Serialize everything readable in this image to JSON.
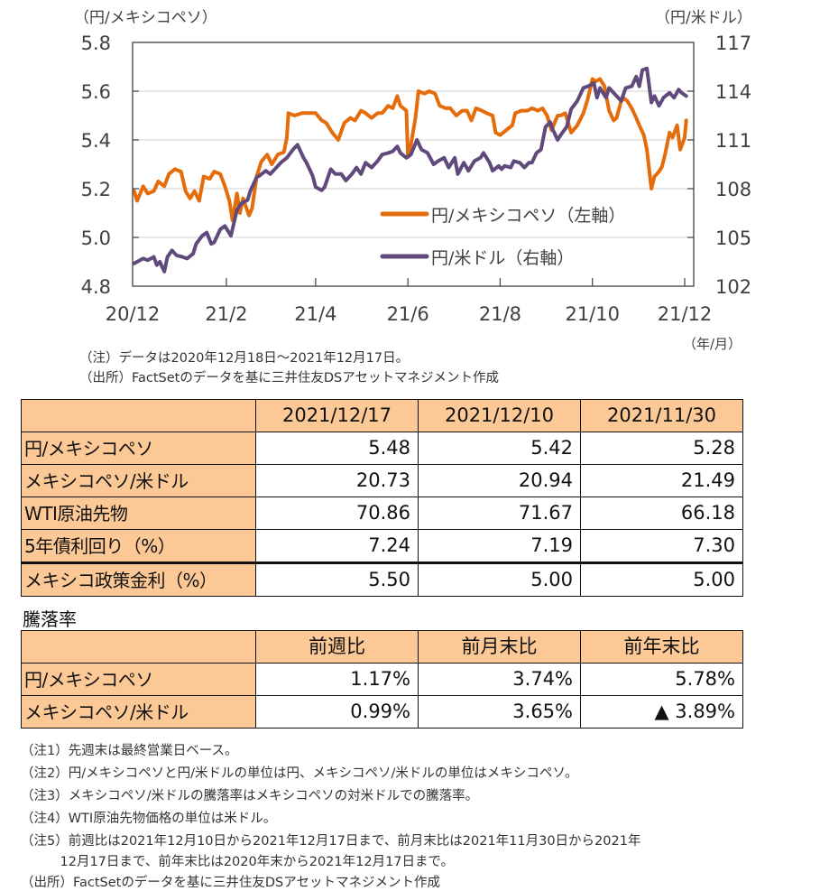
{
  "chart_data": {
    "type": "line",
    "title": "",
    "ylabel_left": "（円/メキシコペソ）",
    "ylabel_right": "（円/米ドル）",
    "xlabel": "（年/月）",
    "x_unit": "days since 2020-12-01",
    "xlim": [
      0,
      371
    ],
    "x_ticks": [
      {
        "day": 0,
        "label": "20/12"
      },
      {
        "day": 62,
        "label": "21/2"
      },
      {
        "day": 121,
        "label": "21/4"
      },
      {
        "day": 182,
        "label": "21/6"
      },
      {
        "day": 243,
        "label": "21/8"
      },
      {
        "day": 304,
        "label": "21/10"
      },
      {
        "day": 365,
        "label": "21/12"
      }
    ],
    "ylim_left": [
      4.8,
      5.8
    ],
    "yticks_left": [
      "4.8",
      "5.0",
      "5.2",
      "5.4",
      "5.6",
      "5.8"
    ],
    "ylim_right": [
      102,
      117
    ],
    "yticks_right": [
      "102",
      "105",
      "108",
      "111",
      "114",
      "117"
    ],
    "grid": true,
    "legend_position": "bottom-right",
    "series": [
      {
        "name": "円/メキシコペソ（左軸）",
        "axis": "left",
        "color": "#e46c0a",
        "points": [
          [
            1,
            5.19
          ],
          [
            3,
            5.15
          ],
          [
            7,
            5.21
          ],
          [
            10,
            5.18
          ],
          [
            14,
            5.19
          ],
          [
            17,
            5.23
          ],
          [
            21,
            5.21
          ],
          [
            24,
            5.26
          ],
          [
            28,
            5.28
          ],
          [
            32,
            5.27
          ],
          [
            35,
            5.19
          ],
          [
            38,
            5.16
          ],
          [
            41,
            5.19
          ],
          [
            44,
            5.15
          ],
          [
            47,
            5.25
          ],
          [
            51,
            5.24
          ],
          [
            54,
            5.27
          ],
          [
            58,
            5.26
          ],
          [
            61,
            5.21
          ],
          [
            64,
            5.15
          ],
          [
            66,
            5.07
          ],
          [
            69,
            5.18
          ],
          [
            71,
            5.1
          ],
          [
            73,
            5.16
          ],
          [
            77,
            5.09
          ],
          [
            79,
            5.12
          ],
          [
            82,
            5.25
          ],
          [
            85,
            5.31
          ],
          [
            89,
            5.34
          ],
          [
            92,
            5.3
          ],
          [
            96,
            5.34
          ],
          [
            100,
            5.35
          ],
          [
            102,
            5.41
          ],
          [
            103,
            5.51
          ],
          [
            107,
            5.5
          ],
          [
            112,
            5.51
          ],
          [
            116,
            5.51
          ],
          [
            121,
            5.51
          ],
          [
            125,
            5.48
          ],
          [
            128,
            5.47
          ],
          [
            132,
            5.43
          ],
          [
            136,
            5.4
          ],
          [
            140,
            5.47
          ],
          [
            144,
            5.49
          ],
          [
            147,
            5.48
          ],
          [
            151,
            5.52
          ],
          [
            154,
            5.51
          ],
          [
            158,
            5.49
          ],
          [
            162,
            5.51
          ],
          [
            165,
            5.51
          ],
          [
            169,
            5.54
          ],
          [
            172,
            5.53
          ],
          [
            175,
            5.58
          ],
          [
            177,
            5.54
          ],
          [
            181,
            5.52
          ],
          [
            182,
            5.33
          ],
          [
            184,
            5.38
          ],
          [
            187,
            5.49
          ],
          [
            189,
            5.6
          ],
          [
            193,
            5.59
          ],
          [
            196,
            5.6
          ],
          [
            200,
            5.59
          ],
          [
            203,
            5.54
          ],
          [
            207,
            5.53
          ],
          [
            210,
            5.53
          ],
          [
            214,
            5.5
          ],
          [
            218,
            5.52
          ],
          [
            221,
            5.52
          ],
          [
            224,
            5.48
          ],
          [
            227,
            5.53
          ],
          [
            231,
            5.52
          ],
          [
            234,
            5.51
          ],
          [
            238,
            5.5
          ],
          [
            240,
            5.43
          ],
          [
            243,
            5.42
          ],
          [
            245,
            5.43
          ],
          [
            247,
            5.44
          ],
          [
            251,
            5.46
          ],
          [
            253,
            5.51
          ],
          [
            257,
            5.52
          ],
          [
            261,
            5.52
          ],
          [
            264,
            5.53
          ],
          [
            268,
            5.52
          ],
          [
            271,
            5.53
          ],
          [
            274,
            5.5
          ],
          [
            277,
            5.44
          ],
          [
            281,
            5.5
          ],
          [
            283,
            5.5
          ],
          [
            286,
            5.51
          ],
          [
            288,
            5.47
          ],
          [
            290,
            5.43
          ],
          [
            294,
            5.46
          ],
          [
            298,
            5.51
          ],
          [
            301,
            5.57
          ],
          [
            304,
            5.65
          ],
          [
            306,
            5.64
          ],
          [
            309,
            5.65
          ],
          [
            312,
            5.62
          ],
          [
            315,
            5.52
          ],
          [
            318,
            5.48
          ],
          [
            320,
            5.49
          ],
          [
            323,
            5.56
          ],
          [
            325,
            5.57
          ],
          [
            327,
            5.56
          ],
          [
            330,
            5.53
          ],
          [
            333,
            5.49
          ],
          [
            335,
            5.46
          ],
          [
            338,
            5.42
          ],
          [
            340,
            5.36
          ],
          [
            343,
            5.2
          ],
          [
            345,
            5.25
          ],
          [
            348,
            5.27
          ],
          [
            350,
            5.29
          ],
          [
            352,
            5.34
          ],
          [
            355,
            5.43
          ],
          [
            357,
            5.41
          ],
          [
            360,
            5.46
          ],
          [
            362,
            5.36
          ],
          [
            365,
            5.41
          ],
          [
            366,
            5.48
          ]
        ]
      },
      {
        "name": "円/米ドル（右軸）",
        "axis": "right",
        "color": "#604a7b",
        "points": [
          [
            1,
            103.4
          ],
          [
            3,
            103.5
          ],
          [
            7,
            103.7
          ],
          [
            10,
            103.6
          ],
          [
            14,
            103.8
          ],
          [
            16,
            103.3
          ],
          [
            18,
            103.5
          ],
          [
            21,
            102.9
          ],
          [
            23,
            103.8
          ],
          [
            26,
            104.2
          ],
          [
            29,
            103.9
          ],
          [
            33,
            103.8
          ],
          [
            36,
            103.7
          ],
          [
            40,
            104.0
          ],
          [
            42,
            104.6
          ],
          [
            46,
            105.1
          ],
          [
            49,
            105.3
          ],
          [
            52,
            104.6
          ],
          [
            54,
            104.7
          ],
          [
            58,
            105.5
          ],
          [
            61,
            105.7
          ],
          [
            65,
            105.1
          ],
          [
            69,
            106.7
          ],
          [
            72,
            107.1
          ],
          [
            76,
            107.3
          ],
          [
            78,
            107.9
          ],
          [
            82,
            108.7
          ],
          [
            84,
            108.8
          ],
          [
            88,
            109.1
          ],
          [
            91,
            108.9
          ],
          [
            95,
            109.3
          ],
          [
            98,
            109.6
          ],
          [
            102,
            109.9
          ],
          [
            106,
            110.4
          ],
          [
            109,
            110.7
          ],
          [
            113,
            109.9
          ],
          [
            115,
            109.6
          ],
          [
            119,
            108.8
          ],
          [
            121,
            108.1
          ],
          [
            125,
            107.9
          ],
          [
            127,
            108.1
          ],
          [
            131,
            109.2
          ],
          [
            134,
            108.9
          ],
          [
            138,
            108.9
          ],
          [
            141,
            108.5
          ],
          [
            145,
            108.9
          ],
          [
            148,
            109.3
          ],
          [
            151,
            108.9
          ],
          [
            154,
            109.6
          ],
          [
            158,
            109.3
          ],
          [
            162,
            109.7
          ],
          [
            165,
            110.1
          ],
          [
            169,
            110.2
          ],
          [
            172,
            110.3
          ],
          [
            175,
            110.6
          ],
          [
            177,
            110.2
          ],
          [
            181,
            109.9
          ],
          [
            184,
            110.1
          ],
          [
            188,
            111.0
          ],
          [
            191,
            110.4
          ],
          [
            195,
            110.2
          ],
          [
            199,
            109.5
          ],
          [
            202,
            109.7
          ],
          [
            206,
            109.9
          ],
          [
            209,
            109.3
          ],
          [
            213,
            109.9
          ],
          [
            215,
            108.9
          ],
          [
            219,
            109.6
          ],
          [
            222,
            109.1
          ],
          [
            226,
            109.7
          ],
          [
            230,
            109.9
          ],
          [
            232,
            110.2
          ],
          [
            236,
            109.6
          ],
          [
            238,
            109.1
          ],
          [
            242,
            109.4
          ],
          [
            244,
            109.2
          ],
          [
            246,
            109.4
          ],
          [
            250,
            109.3
          ],
          [
            252,
            109.7
          ],
          [
            256,
            109.6
          ],
          [
            259,
            109.3
          ],
          [
            262,
            109.6
          ],
          [
            264,
            109.6
          ],
          [
            267,
            110.2
          ],
          [
            270,
            110.4
          ],
          [
            273,
            111.8
          ],
          [
            276,
            112.1
          ],
          [
            278,
            111.6
          ],
          [
            281,
            111.0
          ],
          [
            283,
            111.3
          ],
          [
            287,
            111.8
          ],
          [
            290,
            112.9
          ],
          [
            294,
            113.4
          ],
          [
            298,
            114.2
          ],
          [
            301,
            114.3
          ],
          [
            305,
            114.5
          ],
          [
            307,
            113.6
          ],
          [
            309,
            114.2
          ],
          [
            313,
            113.6
          ],
          [
            315,
            114.2
          ],
          [
            319,
            113.8
          ],
          [
            323,
            113.4
          ],
          [
            326,
            114.2
          ],
          [
            330,
            114.3
          ],
          [
            333,
            114.9
          ],
          [
            335,
            114.3
          ],
          [
            337,
            115.3
          ],
          [
            340,
            115.4
          ],
          [
            343,
            113.3
          ],
          [
            345,
            113.7
          ],
          [
            348,
            113.1
          ],
          [
            351,
            113.6
          ],
          [
            355,
            113.9
          ],
          [
            358,
            113.6
          ],
          [
            361,
            114.1
          ],
          [
            363,
            113.9
          ],
          [
            366,
            113.7
          ]
        ]
      }
    ]
  },
  "chart_notes": [
    "（注）データは2020年12月18日～2021年12月17日。",
    "（出所）FactSetのデータを基に三井住友DSアセットマネジメント作成"
  ],
  "table1": {
    "headers": [
      "",
      "2021/12/17",
      "2021/12/10",
      "2021/11/30"
    ],
    "rows": [
      {
        "label": "円/メキシコペソ",
        "values": [
          "5.48",
          "5.42",
          "5.28"
        ]
      },
      {
        "label": "メキシコペソ/米ドル",
        "values": [
          "20.73",
          "20.94",
          "21.49"
        ]
      },
      {
        "label": "WTI原油先物",
        "values": [
          "70.86",
          "71.67",
          "66.18"
        ]
      },
      {
        "label": "5年債利回り（%）",
        "values": [
          "7.24",
          "7.19",
          "7.30"
        ]
      },
      {
        "label": "メキシコ政策金利（%）",
        "values": [
          "5.50",
          "5.00",
          "5.00"
        ]
      }
    ]
  },
  "table2": {
    "title": "騰落率",
    "headers": [
      "",
      "前週比",
      "前月末比",
      "前年末比"
    ],
    "rows": [
      {
        "label": "円/メキシコペソ",
        "values": [
          "1.17%",
          "3.74%",
          "5.78%"
        ]
      },
      {
        "label": "メキシコペソ/米ドル",
        "values": [
          "0.99%",
          "3.65%",
          "▲ 3.89%"
        ]
      }
    ]
  },
  "footnotes": [
    "（注1）先週末は最終営業日ベース。",
    "（注2）円/メキシコペソと円/米ドルの単位は円、メキシコペソ/米ドルの単位はメキシコペソ。",
    "（注3）メキシコペソ/米ドルの騰落率はメキシコペソの対米ドルでの騰落率。",
    "（注4）WTI原油先物価格の単位は米ドル。",
    "（注5）前週比は2021年12月10日から2021年12月17日まで、前月末比は2021年11月30日から2021年",
    "　　　12月17日まで、前年末比は2020年末から2021年12月17日まで。",
    "（出所）FactSetのデータを基に三井住友DSアセットマネジメント作成"
  ]
}
